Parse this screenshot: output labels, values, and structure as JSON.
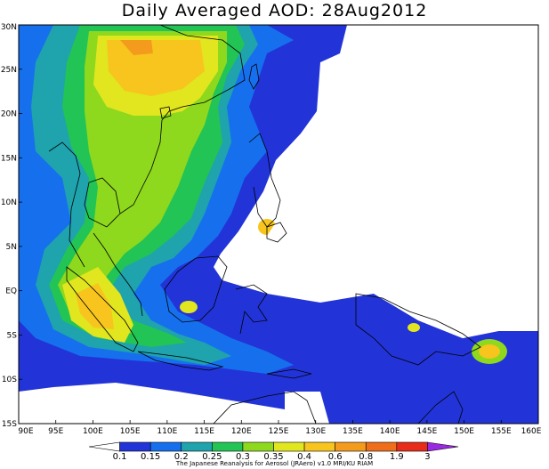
{
  "title": "Daily Averaged AOD: 28Aug2012",
  "credit": "The Japanese Reanalysis for Aerosol (JRAero) v1.0 MRI/KU RIAM",
  "colors": {
    "ocean": "#ffffff",
    "coast": "#000000",
    "aod_levels": [
      "#ffffff",
      "#2234d8",
      "#1670ee",
      "#1fa3ad",
      "#22c455",
      "#8ed81e",
      "#e1e61e",
      "#f7c51d",
      "#f49b1d",
      "#ef6e1b",
      "#e82b1b",
      "#9a2ae0"
    ]
  },
  "chart_data": {
    "type": "heatmap",
    "title": "Daily Averaged AOD: 28Aug2012",
    "x_ticks": [
      "90E",
      "95E",
      "100E",
      "105E",
      "110E",
      "115E",
      "120E",
      "125E",
      "130E",
      "135E",
      "140E",
      "145E",
      "150E",
      "155E",
      "160E"
    ],
    "y_ticks": [
      "30N",
      "25N",
      "20N",
      "15N",
      "10N",
      "5N",
      "EQ",
      "5S",
      "10S",
      "15S"
    ],
    "xlim": [
      90,
      160
    ],
    "ylim": [
      -15,
      30
    ],
    "colorbar": {
      "labels": [
        "0.1",
        "0.15",
        "0.2",
        "0.25",
        "0.3",
        "0.35",
        "0.4",
        "0.6",
        "0.8",
        "1.9",
        "3"
      ]
    }
  }
}
